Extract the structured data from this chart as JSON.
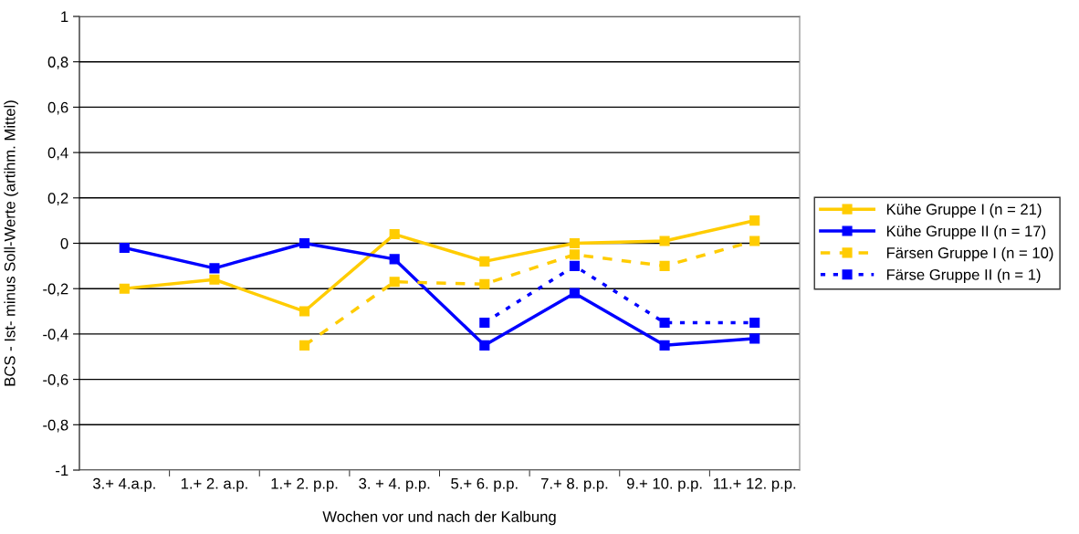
{
  "chart_data": {
    "type": "line",
    "xlabel": "Wochen vor und nach der Kalbung",
    "ylabel": "BCS - Ist- minus Soll-Werte (artihm. Mittel)",
    "categories": [
      "3.+ 4.a.p.",
      "1.+ 2. a.p.",
      "1.+ 2. p.p.",
      "3. + 4. p.p.",
      "5.+ 6. p.p.",
      "7.+ 8. p.p.",
      "9.+ 10. p.p.",
      "11.+ 12. p.p."
    ],
    "series": [
      {
        "name": "Kühe Gruppe I (n = 21)",
        "color": "#ffcc00",
        "line_style": "solid",
        "values": [
          -0.2,
          -0.16,
          -0.3,
          0.04,
          -0.08,
          0,
          0.01,
          0.1
        ]
      },
      {
        "name": "Kühe Gruppe II (n = 17)",
        "color": "#0000ff",
        "line_style": "solid",
        "values": [
          -0.02,
          -0.11,
          0,
          -0.07,
          -0.45,
          -0.22,
          -0.45,
          -0.42
        ]
      },
      {
        "name": "Färsen Gruppe I (n = 10)",
        "color": "#ffcc00",
        "line_style": "dashed",
        "values": [
          null,
          null,
          -0.45,
          -0.17,
          -0.18,
          -0.05,
          -0.1,
          0.01
        ]
      },
      {
        "name": "Färse Gruppe II (n = 1)",
        "color": "#0000ff",
        "line_style": "dotted",
        "values": [
          null,
          null,
          null,
          null,
          -0.35,
          -0.1,
          -0.35,
          -0.35
        ]
      }
    ],
    "ylim": [
      -1,
      1
    ],
    "yticks": [
      {
        "value": -1,
        "label": "-1"
      },
      {
        "value": -0.8,
        "label": "-0,8"
      },
      {
        "value": -0.6,
        "label": "-0,6"
      },
      {
        "value": -0.4,
        "label": "-0,4"
      },
      {
        "value": -0.2,
        "label": "-0,2"
      },
      0,
      {
        "value": 0.2,
        "label": "0,2"
      },
      {
        "value": 0.4,
        "label": "0,4"
      },
      {
        "value": 0.6,
        "label": "0,6"
      },
      {
        "value": 0.8,
        "label": "0,8"
      },
      1
    ],
    "grid": "y",
    "legend": "right",
    "marker": "square"
  }
}
